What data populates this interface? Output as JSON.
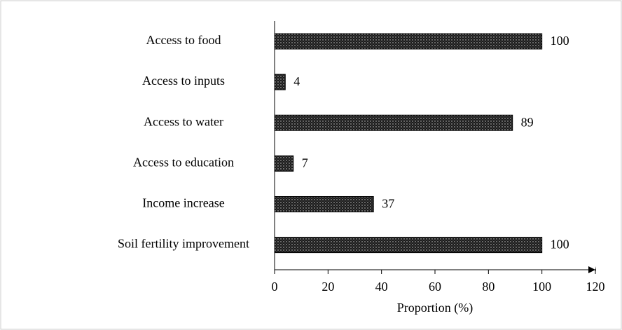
{
  "chart_data": {
    "type": "barh",
    "categories": [
      "Access to food",
      "Access to inputs",
      "Access to water",
      "Access to education",
      "Income increase",
      "Soil fertility improvement"
    ],
    "values": [
      100,
      4,
      89,
      7,
      37,
      100
    ],
    "color": "#1a1a1a",
    "xlim": [
      0,
      120
    ],
    "xticks": [
      0,
      20,
      40,
      60,
      80,
      100,
      120
    ],
    "xlabel": "Proportion (%)",
    "grid": false
  }
}
